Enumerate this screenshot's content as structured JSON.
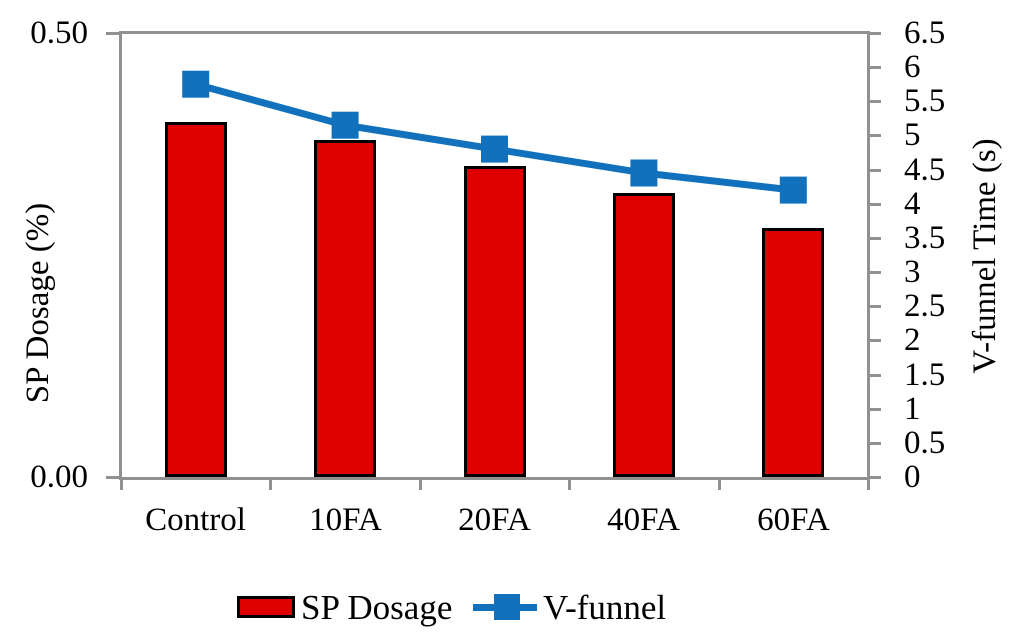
{
  "chart_data": {
    "type": "combo-bar-line",
    "categories": [
      "Control",
      "10FA",
      "20FA",
      "40FA",
      "60FA"
    ],
    "series": [
      {
        "name": "SP Dosage",
        "type": "bar",
        "axis": "left",
        "values": [
          0.4,
          0.38,
          0.35,
          0.32,
          0.28
        ]
      },
      {
        "name": "V-funnel",
        "type": "line",
        "axis": "right",
        "marker": "square",
        "values": [
          5.75,
          5.15,
          4.8,
          4.45,
          4.2
        ]
      }
    ],
    "left_axis": {
      "title": "SP Dosage (%)",
      "min": 0,
      "max": 0.5,
      "tick_labels": [
        "0.00",
        "0.50"
      ],
      "tick_values": [
        0,
        0.5
      ]
    },
    "right_axis": {
      "title": "V-funnel Time (s)",
      "min": 0,
      "max": 6.5,
      "step": 0.5,
      "tick_labels": [
        "0",
        "0.5",
        "1",
        "1.5",
        "2",
        "2.5",
        "3",
        "3.5",
        "4",
        "4.5",
        "5",
        "5.5",
        "6",
        "6.5"
      ]
    },
    "x_axis": {
      "tick_labels": [
        "Control",
        "10FA",
        "20FA",
        "40FA",
        "60FA"
      ]
    },
    "legend": {
      "position": "bottom",
      "items": [
        {
          "label": "SP Dosage",
          "swatch": "bar"
        },
        {
          "label": "V-funnel",
          "swatch": "line-marker"
        }
      ]
    },
    "grid": false,
    "colors": {
      "bar_fill": "#df0000",
      "bar_stroke": "#000000",
      "line": "#1171bc",
      "axis": "#919191",
      "text": "#000000"
    }
  }
}
